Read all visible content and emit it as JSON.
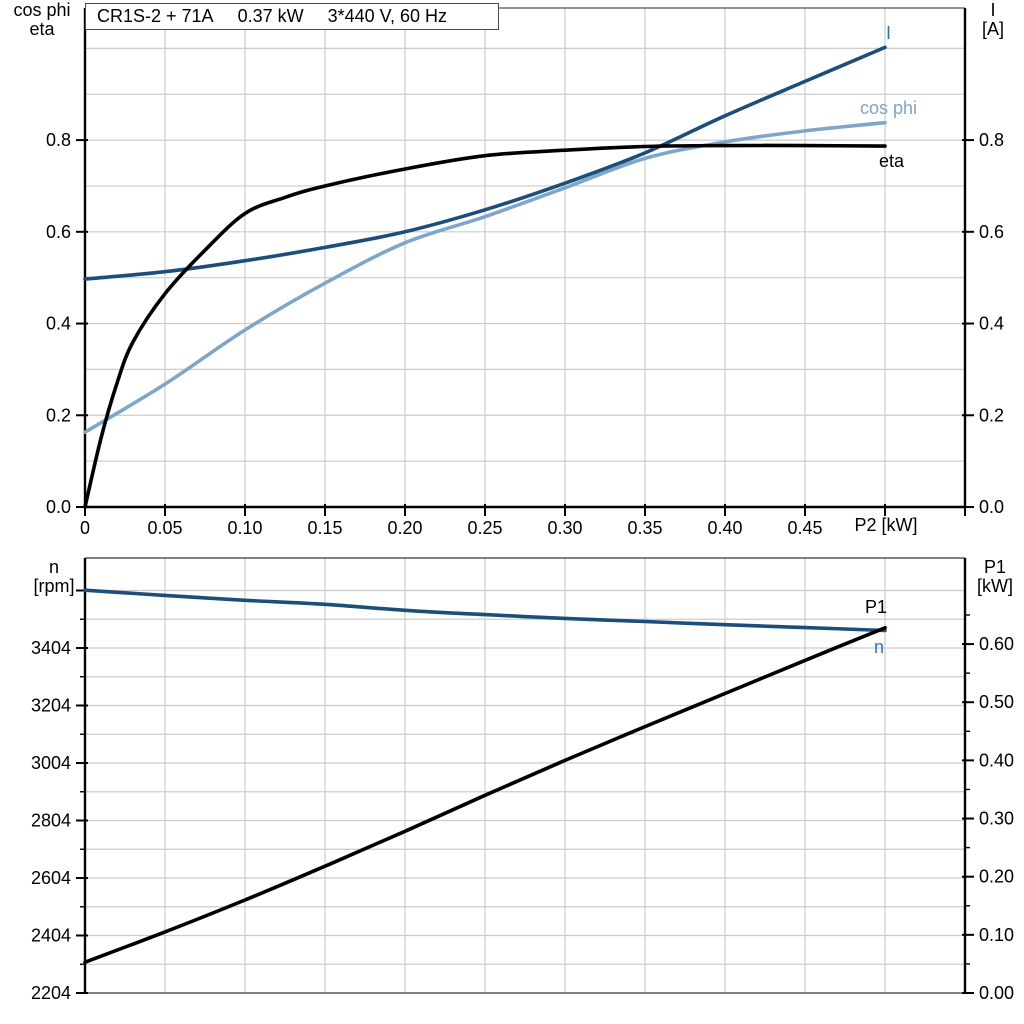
{
  "title": {
    "segments": [
      "CR1S-2 + 71A",
      "0.37 kW",
      "3*440 V, 60 Hz"
    ]
  },
  "colors": {
    "dark_blue": "#1c4e79",
    "light_blue": "#7ea6c9",
    "label_blue": "#2e74b5",
    "black": "#000000",
    "grid": "#cccccc",
    "frame_gray": "#6e6e6e",
    "axis_black": "#000000",
    "background": "#ffffff"
  },
  "top_chart": {
    "left_axis_title_line1": "cos phi",
    "left_axis_title_line2": "eta",
    "right_axis_title_line1": "I",
    "right_axis_title_line2": "[A]",
    "x_axis_title": "P2 [kW]",
    "curve_label_I": "I",
    "curve_label_cosphi": "cos phi",
    "curve_label_eta": "eta"
  },
  "bottom_chart": {
    "left_axis_title_line1": "n",
    "left_axis_title_line2": "[rpm]",
    "right_axis_title_line1": "P1",
    "right_axis_title_line2": "[kW]",
    "curve_label_P1": "P1",
    "curve_label_n": "n"
  },
  "chart_data": [
    {
      "id": "top",
      "type": "line",
      "title": "CR1S-2 + 71A  0.37 kW  3*440 V, 60 Hz",
      "xlabel": "P2 [kW]",
      "ylabel_left": "cos phi / eta",
      "ylabel_right": "I [A]",
      "xlim": [
        0,
        0.55
      ],
      "ylim": [
        0,
        1.088
      ],
      "grid": true,
      "x_tick_values": [
        0,
        0.05,
        0.1,
        0.15,
        0.2,
        0.25,
        0.3,
        0.35,
        0.4,
        0.45,
        0.5,
        0.55
      ],
      "x_tick_labels": [
        "0",
        "0.05",
        "0.10",
        "0.15",
        "0.20",
        "0.25",
        "0.30",
        "0.35",
        "0.40",
        "0.45",
        "",
        ""
      ],
      "y_tick_values": [
        0.0,
        0.2,
        0.4,
        0.6,
        0.8
      ],
      "y_tick_labels": [
        "0.0",
        "0.2",
        "0.4",
        "0.6",
        "0.8"
      ],
      "grid_x_step": 0.05,
      "grid_y_step": 0.1,
      "series": [
        {
          "name": "I",
          "color_key": "dark_blue",
          "x": [
            0,
            0.05,
            0.1,
            0.15,
            0.2,
            0.25,
            0.3,
            0.35,
            0.4,
            0.45,
            0.5
          ],
          "y": [
            0.497,
            0.513,
            0.537,
            0.566,
            0.6,
            0.648,
            0.706,
            0.772,
            0.853,
            0.928,
            1.002
          ]
        },
        {
          "name": "cos phi",
          "color_key": "light_blue",
          "x": [
            0,
            0.05,
            0.1,
            0.15,
            0.2,
            0.25,
            0.3,
            0.35,
            0.4,
            0.45,
            0.5
          ],
          "y": [
            0.163,
            0.268,
            0.386,
            0.488,
            0.576,
            0.633,
            0.696,
            0.76,
            0.796,
            0.82,
            0.838
          ]
        },
        {
          "name": "eta",
          "color_key": "black",
          "x": [
            0,
            0.01,
            0.02,
            0.03,
            0.05,
            0.075,
            0.1,
            0.125,
            0.15,
            0.2,
            0.25,
            0.3,
            0.35,
            0.4,
            0.45,
            0.5
          ],
          "y": [
            0.0,
            0.15,
            0.27,
            0.36,
            0.465,
            0.56,
            0.64,
            0.675,
            0.7,
            0.737,
            0.766,
            0.778,
            0.786,
            0.788,
            0.788,
            0.787
          ]
        }
      ]
    },
    {
      "id": "bottom",
      "type": "line",
      "xlabel": "",
      "ylabel_left": "n [rpm]",
      "ylabel_right": "P1 [kW]",
      "xlim": [
        0,
        0.55
      ],
      "ylim_left": [
        2204,
        3717
      ],
      "ylim_right": [
        0,
        0.748
      ],
      "grid": true,
      "left_tick_values": [
        2204,
        2404,
        2604,
        2804,
        3004,
        3204,
        3404
      ],
      "left_tick_labels": [
        "2204",
        "2404",
        "2604",
        "2804",
        "3004",
        "3204",
        "3404"
      ],
      "left_extra_tick_values": [
        3604
      ],
      "left_minor_tick_values": [
        2304,
        2504,
        2704,
        2904,
        3104,
        3304,
        3504
      ],
      "right_tick_values": [
        0.0,
        0.1,
        0.2,
        0.3,
        0.4,
        0.5,
        0.6
      ],
      "right_tick_labels": [
        "0.00",
        "0.10",
        "0.20",
        "0.30",
        "0.40",
        "0.50",
        "0.60"
      ],
      "right_minor_tick_values": [
        0.05,
        0.15,
        0.25,
        0.35,
        0.45,
        0.55,
        0.65
      ],
      "grid_rpm_step": 100,
      "grid_x_step": 0.05,
      "series": [
        {
          "name": "n",
          "axis": "left",
          "color_key": "dark_blue",
          "x": [
            0,
            0.05,
            0.1,
            0.15,
            0.2,
            0.25,
            0.3,
            0.35,
            0.4,
            0.45,
            0.5
          ],
          "y": [
            3605,
            3587,
            3570,
            3556,
            3535,
            3520,
            3507,
            3496,
            3485,
            3475,
            3465
          ]
        },
        {
          "name": "P1",
          "axis": "right",
          "color_key": "black",
          "x": [
            0,
            0.05,
            0.1,
            0.15,
            0.2,
            0.25,
            0.3,
            0.35,
            0.4,
            0.45,
            0.5
          ],
          "y": [
            0.053,
            0.105,
            0.16,
            0.218,
            0.278,
            0.34,
            0.4,
            0.458,
            0.515,
            0.572,
            0.628
          ]
        }
      ]
    }
  ]
}
